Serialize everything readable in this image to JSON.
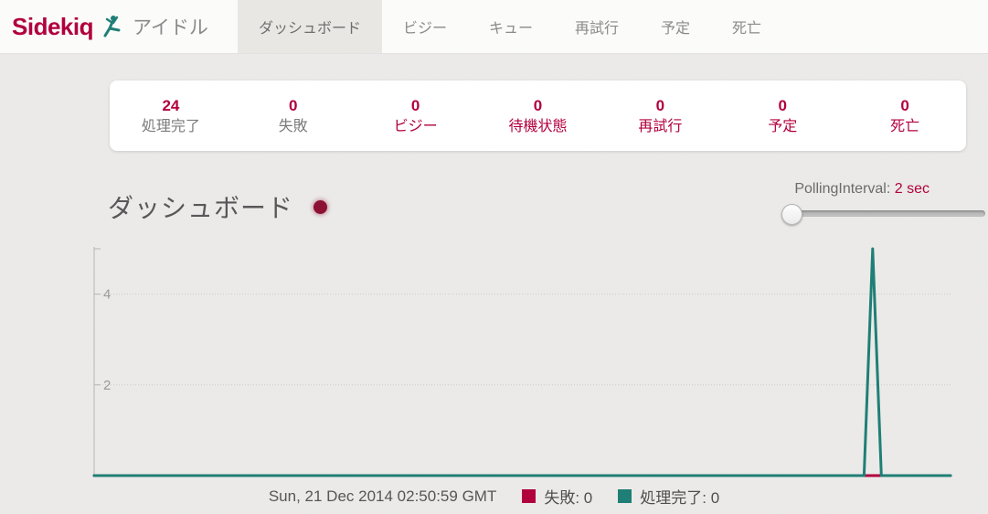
{
  "brand": {
    "name": "Sidekiq",
    "status_label": "アイドル",
    "logo_icon": "sidekick-figure-icon",
    "brand_color": "#b1003e",
    "logo_color": "#1f7f76"
  },
  "nav": {
    "tabs": [
      {
        "label": "ダッシュボード",
        "active": true
      },
      {
        "label": "ビジー",
        "active": false
      },
      {
        "label": "キュー",
        "active": false
      },
      {
        "label": "再試行",
        "active": false
      },
      {
        "label": "予定",
        "active": false
      },
      {
        "label": "死亡",
        "active": false
      }
    ]
  },
  "stats": [
    {
      "value": "24",
      "label": "処理完了",
      "is_link": false
    },
    {
      "value": "0",
      "label": "失敗",
      "is_link": false
    },
    {
      "value": "0",
      "label": "ビジー",
      "is_link": true
    },
    {
      "value": "0",
      "label": "待機状態",
      "is_link": true
    },
    {
      "value": "0",
      "label": "再試行",
      "is_link": true
    },
    {
      "value": "0",
      "label": "予定",
      "is_link": true
    },
    {
      "value": "0",
      "label": "死亡",
      "is_link": true
    }
  ],
  "dashboard": {
    "title": "ダッシュボード",
    "polling_label": "PollingInterval:",
    "polling_value": "2 sec",
    "slider_position_percent": 0
  },
  "chart_data": {
    "type": "line",
    "ylim": [
      0,
      5
    ],
    "y_ticks": [
      2,
      4
    ],
    "x_tick_labels": [],
    "grid": "horizontal-dotted",
    "legend_position": "bottom-center",
    "series": [
      {
        "name": "失敗",
        "color": "#b1003e",
        "length": 100,
        "default_value": 0,
        "points": {}
      },
      {
        "name": "処理完了",
        "color": "#1f7f76",
        "length": 100,
        "default_value": 0,
        "points": {
          "90": 5
        }
      }
    ]
  },
  "legend": {
    "timestamp": "Sun, 21 Dec 2014 02:50:59 GMT",
    "items": [
      {
        "label": "失敗",
        "value": "0",
        "display": "失敗: 0",
        "color": "#b1003e"
      },
      {
        "label": "処理完了",
        "value": "0",
        "display": "処理完了: 0",
        "color": "#1f7f76"
      }
    ]
  },
  "colors": {
    "accent_crimson": "#b1003e",
    "series_teal": "#1f7f76",
    "page_background": "#edecea",
    "navbar_background": "#fbfbfa",
    "active_tab_background": "#e8e7e4",
    "card_background": "#ffffff",
    "muted_text": "#8a8a8a",
    "beacon": "#8c1132",
    "axis": "#b5b5b3",
    "gridline": "#cbcbc9"
  }
}
